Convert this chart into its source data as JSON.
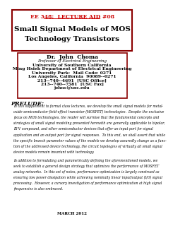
{
  "background_color": "#ffffff",
  "top_box": {
    "header_text": "EE 348:  LECTURE AID #08",
    "title_line1": "Small Signal Models of MOS",
    "title_line2": "Technology Transistors",
    "header_color": "#cc0000",
    "title_color": "#000000",
    "box_edge_color": "#8b0000",
    "box_fill": "#ffffff"
  },
  "author_box": {
    "name": "Dr.  John  Choma",
    "title_text": "Professor of Electrical Engineering",
    "university": "University of Southern California",
    "dept": "Ming Hsieh Department of Electrical Engineering",
    "address1": "University Park:  Mail Code: 0271",
    "address2": "Los Angeles, California  90089--0271",
    "phone": "213--740--4691  [USC Office]",
    "fax": "213--740--7581  [USC Fax]",
    "email": "johnc@usc.edu",
    "box_edge_color": "#8b0000",
    "box_fill": "#ffffff"
  },
  "prelude": {
    "heading": "PRELUDE:",
    "para1_lines": [
      "In this supplement to formal class lectures, we develop the small signal models for metal-",
      "oxide-semiconductor field-effect transistor (MOSFET) technologies.  Despite the exclusive",
      "focus on MOS technologies, the reader will surmise that the fundamental concepts and",
      "strategies of small signal modeling presented herewith are generally applicable to bipolar,",
      "III-V compound, and other semiconductor devices that offer an input port for signal",
      "application and an output port for signal responses.  To this end, we shall assert that while",
      "the specific branch parameter values of the models we develop assuredly change as a func-",
      "tion of the addressed device technology, the circuit topologies of virtually all small signal",
      "device models remain invariant with technology."
    ],
    "para2_lines": [
      "In addition to formulating and parametrically defining the aforementioned models, we",
      "seek to establish a general design strategy that optimizes the performance of MOSFET",
      "analog networks.  In this set of notes, performance optimization is largely construed as",
      "ensuring low power dissipation while achieving nominally linear input/output (I/O) signal",
      "processing.  However, a cursory investigation of performance optimization at high signal",
      "frequencies is also embraced."
    ],
    "footer": "MARCH 2012",
    "heading_color": "#000000",
    "text_color": "#000000"
  }
}
